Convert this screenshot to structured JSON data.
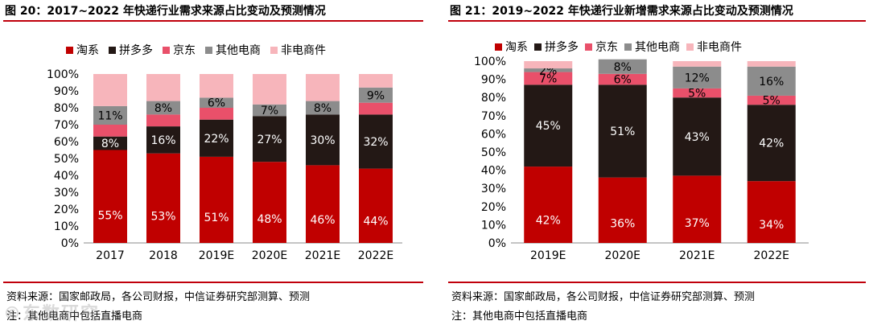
{
  "colors": {
    "taoxi": "#c00000",
    "pinduoduo": "#231815",
    "jingdong": "#e9506a",
    "other_ecom": "#8c8c8c",
    "non_ecom": "#f7b5bb",
    "rule": "#c0000b"
  },
  "left": {
    "title": "图 20：2017~2022 年快递行业需求来源占比变动及预测情况",
    "source": "资料来源：国家邮政局，各公司财报，中信证券研究部测算、预测",
    "note": "注：其他电商中包括直播电商"
  },
  "right": {
    "title": "图 21：2019~2022 年快递行业新增需求来源占比变动及预测情况",
    "source": "资料来源：国家邮政局，各公司财报，中信证券研究部测算、预测",
    "note": "注：其他电商中包括直播电商"
  },
  "watermark": "©东数研究",
  "chart_data": [
    {
      "type": "bar",
      "stacked": true,
      "title": "图 20：2017~2022 年快递行业需求来源占比变动及预测情况",
      "categories": [
        "2017",
        "2018",
        "2019E",
        "2020E",
        "2021E",
        "2022E"
      ],
      "ylim": [
        0,
        100
      ],
      "yticks": [
        "0%",
        "10%",
        "20%",
        "30%",
        "40%",
        "50%",
        "60%",
        "70%",
        "80%",
        "90%",
        "100%"
      ],
      "legend_position": "top",
      "series": [
        {
          "name": "淘系",
          "key": "taoxi",
          "values": [
            55,
            53,
            51,
            48,
            46,
            44
          ],
          "labels": [
            "55%",
            "53%",
            "51%",
            "48%",
            "46%",
            "44%"
          ]
        },
        {
          "name": "拼多多",
          "key": "pinduoduo",
          "values": [
            8,
            16,
            22,
            27,
            30,
            32
          ],
          "labels": [
            "8%",
            "16%",
            "22%",
            "27%",
            "30%",
            "32%"
          ]
        },
        {
          "name": "京东",
          "key": "jingdong",
          "values": [
            7,
            7,
            7,
            0,
            0,
            7
          ],
          "labels": [
            "",
            "",
            "",
            "",
            "",
            ""
          ]
        },
        {
          "name": "其他电商",
          "key": "other_ecom",
          "values": [
            11,
            8,
            6,
            7,
            8,
            9
          ],
          "labels": [
            "11%",
            "8%",
            "6%",
            "7%",
            "8%",
            "9%"
          ]
        },
        {
          "name": "非电商件",
          "key": "non_ecom",
          "values": [
            19,
            16,
            14,
            18,
            16,
            8
          ],
          "labels": [
            "",
            "",
            "",
            "",
            "",
            ""
          ]
        }
      ]
    },
    {
      "type": "bar",
      "stacked": true,
      "title": "图 21：2019~2022 年快递行业新增需求来源占比变动及预测情况",
      "categories": [
        "2019E",
        "2020E",
        "2021E",
        "2022E"
      ],
      "ylim": [
        0,
        100
      ],
      "yticks": [
        "0%",
        "10%",
        "20%",
        "30%",
        "40%",
        "50%",
        "60%",
        "70%",
        "80%",
        "90%",
        "100%"
      ],
      "legend_position": "top",
      "series": [
        {
          "name": "淘系",
          "key": "taoxi",
          "values": [
            42,
            36,
            37,
            34
          ],
          "labels": [
            "42%",
            "36%",
            "37%",
            "34%"
          ]
        },
        {
          "name": "拼多多",
          "key": "pinduoduo",
          "values": [
            45,
            51,
            43,
            42
          ],
          "labels": [
            "45%",
            "51%",
            "43%",
            "42%"
          ]
        },
        {
          "name": "京东",
          "key": "jingdong",
          "values": [
            7,
            6,
            5,
            5
          ],
          "labels": [
            "7%",
            "6%",
            "5%",
            "5%"
          ]
        },
        {
          "name": "其他电商",
          "key": "other_ecom",
          "values": [
            2,
            8,
            12,
            16
          ],
          "labels": [
            "2%",
            "8%",
            "12%",
            "16%"
          ]
        },
        {
          "name": "非电商件",
          "key": "non_ecom",
          "values": [
            4,
            0,
            3,
            3
          ],
          "labels": [
            "",
            "",
            "",
            ""
          ]
        }
      ]
    }
  ]
}
